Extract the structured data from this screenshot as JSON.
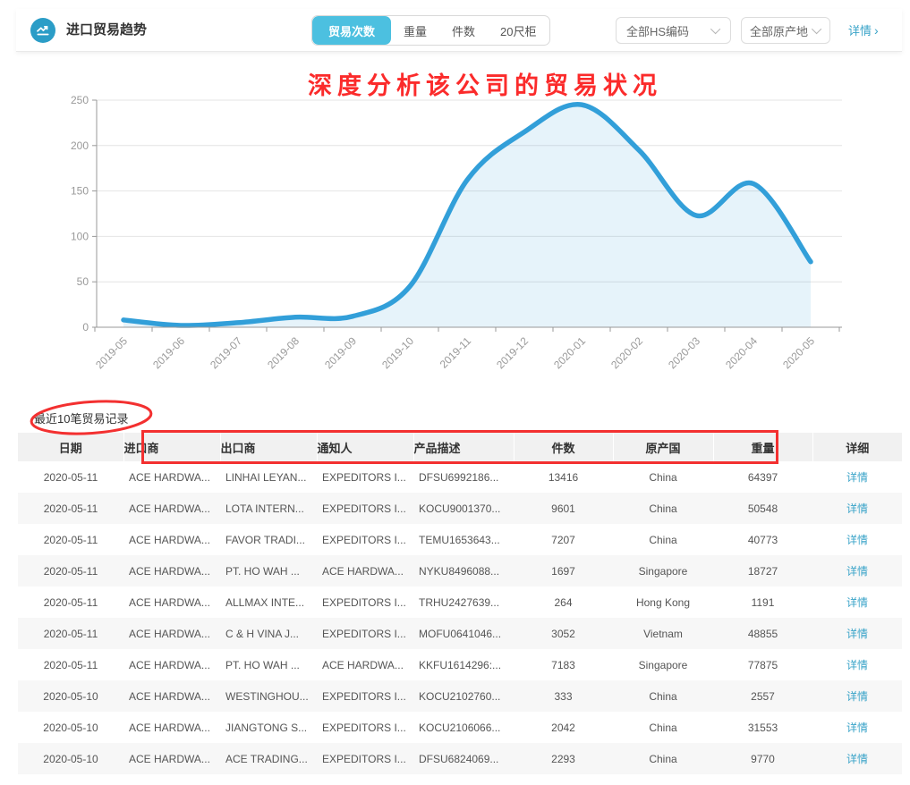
{
  "header": {
    "title": "进口贸易趋势",
    "tabs": [
      {
        "label": "贸易次数",
        "active": true
      },
      {
        "label": "重量",
        "active": false
      },
      {
        "label": "件数",
        "active": false
      },
      {
        "label": "20尺柜",
        "active": false
      }
    ],
    "hs_dropdown": "全部HS编码",
    "origin_dropdown": "全部原产地",
    "detail_link": "详情",
    "accent_color": "#4cc0e0"
  },
  "annotation": {
    "headline": "深度分析该公司的贸易状况",
    "color": "#fb2b2b"
  },
  "chart_data": {
    "type": "area",
    "title": "",
    "xlabel": "",
    "ylabel": "",
    "x": [
      "2019-05",
      "2019-06",
      "2019-07",
      "2019-08",
      "2019-09",
      "2019-10",
      "2019-11",
      "2019-12",
      "2020-01",
      "2020-02",
      "2020-03",
      "2020-04",
      "2020-05"
    ],
    "values": [
      8,
      2,
      5,
      11,
      12,
      45,
      162,
      215,
      245,
      195,
      123,
      158,
      72
    ],
    "ylim": [
      0,
      250
    ],
    "yticks": [
      0,
      50,
      100,
      150,
      200,
      250
    ],
    "grid": true,
    "legend": "none",
    "line_color": "#329fd9",
    "fill_color": "rgba(50,159,217,0.12)",
    "axis_color": "#999999",
    "gridline_color": "#e4e4e4",
    "tick_label_color": "#999999"
  },
  "records": {
    "section_title": "最近10笔贸易记录",
    "columns": [
      "日期",
      "进口商",
      "出口商",
      "通知人",
      "产品描述",
      "件数",
      "原产国",
      "重量",
      "详细"
    ],
    "detail_label": "详情",
    "rows": [
      [
        "2020-05-11",
        "ACE HARDWA...",
        "LINHAI LEYAN...",
        "EXPEDITORS I...",
        "DFSU6992186...",
        "13416",
        "China",
        "64397"
      ],
      [
        "2020-05-11",
        "ACE HARDWA...",
        "LOTA INTERN...",
        "EXPEDITORS I...",
        "KOCU9001370...",
        "9601",
        "China",
        "50548"
      ],
      [
        "2020-05-11",
        "ACE HARDWA...",
        "FAVOR TRADI...",
        "EXPEDITORS I...",
        "TEMU1653643...",
        "7207",
        "China",
        "40773"
      ],
      [
        "2020-05-11",
        "ACE HARDWA...",
        "PT. HO WAH ...",
        "ACE HARDWA...",
        "NYKU8496088...",
        "1697",
        "Singapore",
        "18727"
      ],
      [
        "2020-05-11",
        "ACE HARDWA...",
        "ALLMAX INTE...",
        "EXPEDITORS I...",
        "TRHU2427639...",
        "264",
        "Hong Kong",
        "1191"
      ],
      [
        "2020-05-11",
        "ACE HARDWA...",
        "C & H VINA J...",
        "EXPEDITORS I...",
        "MOFU0641046...",
        "3052",
        "Vietnam",
        "48855"
      ],
      [
        "2020-05-11",
        "ACE HARDWA...",
        "PT. HO WAH ...",
        "ACE HARDWA...",
        "KKFU1614296:...",
        "7183",
        "Singapore",
        "77875"
      ],
      [
        "2020-05-10",
        "ACE HARDWA...",
        "WESTINGHOU...",
        "EXPEDITORS I...",
        "KOCU2102760...",
        "333",
        "China",
        "2557"
      ],
      [
        "2020-05-10",
        "ACE HARDWA...",
        "JIANGTONG S...",
        "EXPEDITORS I...",
        "KOCU2106066...",
        "2042",
        "China",
        "31553"
      ],
      [
        "2020-05-10",
        "ACE HARDWA...",
        "ACE TRADING...",
        "EXPEDITORS I...",
        "DFSU6824069...",
        "2293",
        "China",
        "9770"
      ]
    ]
  }
}
